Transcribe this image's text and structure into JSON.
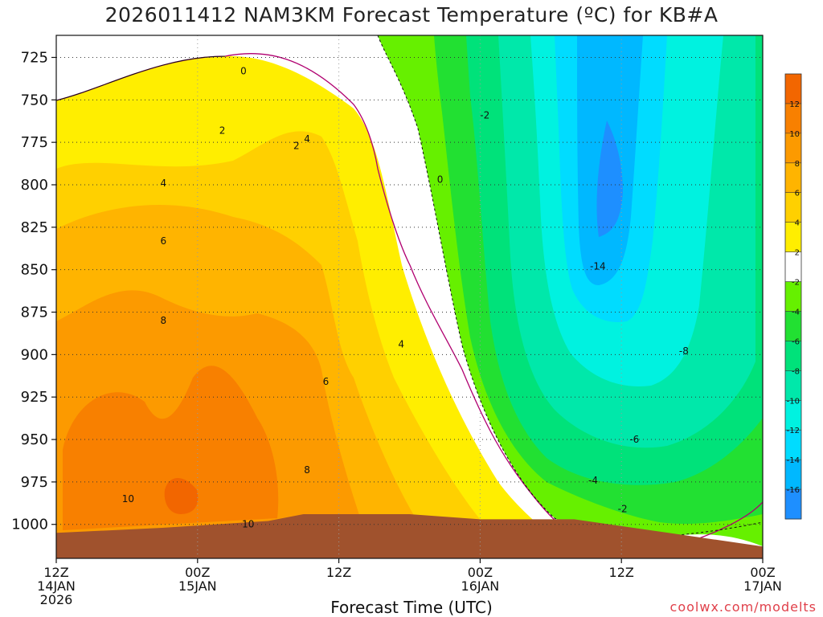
{
  "chart_data": {
    "type": "heatmap",
    "title": "2026011412 NAM3KM Forecast Temperature (ºC) for KB#A",
    "xlabel": "Forecast Time (UTC)",
    "x_ticks": [
      {
        "hour": 0,
        "l1": "12Z",
        "l2": "14JAN",
        "l3": "2026"
      },
      {
        "hour": 12,
        "l1": "00Z",
        "l2": "15JAN",
        "l3": ""
      },
      {
        "hour": 24,
        "l1": "12Z",
        "l2": "",
        "l3": ""
      },
      {
        "hour": 36,
        "l1": "00Z",
        "l2": "16JAN",
        "l3": ""
      },
      {
        "hour": 48,
        "l1": "12Z",
        "l2": "",
        "l3": ""
      },
      {
        "hour": 60,
        "l1": "00Z",
        "l2": "17JAN",
        "l3": ""
      }
    ],
    "xlim": [
      0,
      60
    ],
    "y_ticks": [
      725,
      750,
      775,
      800,
      825,
      850,
      875,
      900,
      925,
      950,
      975,
      1000
    ],
    "ylim": [
      1020,
      712
    ],
    "y_unit": "hPa",
    "colorbar": {
      "levels": [
        -18,
        -16,
        -14,
        -12,
        -10,
        -8,
        -6,
        -4,
        -2,
        2,
        4,
        6,
        8,
        10,
        12,
        14
      ],
      "tick_labels": [
        "-16",
        "-14",
        "-12",
        "-10",
        "-8",
        "-6",
        "-4",
        "-2",
        "2",
        "4",
        "6",
        "8",
        "10",
        "12"
      ],
      "colors": [
        "#1e8fff",
        "#00b8ff",
        "#00dcff",
        "#00f2e0",
        "#00e8aa",
        "#00e27a",
        "#22e032",
        "#66f000",
        "#ffffff",
        "#ffee00",
        "#ffd000",
        "#ffb400",
        "#fc9a00",
        "#f88000",
        "#f26600"
      ]
    },
    "contour_labels": [
      {
        "text": "0",
        "hour": 15.9,
        "p": 733
      },
      {
        "text": "0",
        "hour": 32.6,
        "p": 797
      },
      {
        "text": "-2",
        "hour": 36.4,
        "p": 759
      },
      {
        "text": "2",
        "hour": 14.1,
        "p": 768
      },
      {
        "text": "2",
        "hour": 20.4,
        "p": 777
      },
      {
        "text": "4",
        "hour": 21.3,
        "p": 773
      },
      {
        "text": "4",
        "hour": 9.1,
        "p": 799
      },
      {
        "text": "6",
        "hour": 9.1,
        "p": 833
      },
      {
        "text": "8",
        "hour": 9.1,
        "p": 880
      },
      {
        "text": "6",
        "hour": 22.9,
        "p": 916
      },
      {
        "text": "4",
        "hour": 29.3,
        "p": 894
      },
      {
        "text": "8",
        "hour": 21.3,
        "p": 968
      },
      {
        "text": "10",
        "hour": 6.1,
        "p": 985
      },
      {
        "text": "10",
        "hour": 16.3,
        "p": 1000
      },
      {
        "text": "-14",
        "hour": 46.0,
        "p": 848
      },
      {
        "text": "-8",
        "hour": 53.3,
        "p": 898
      },
      {
        "text": "-6",
        "hour": 49.1,
        "p": 950
      },
      {
        "text": "-4",
        "hour": 45.6,
        "p": 974
      },
      {
        "text": "-2",
        "hour": 48.1,
        "p": 991
      }
    ],
    "surface_pressure": [
      [
        0,
        1005
      ],
      [
        9,
        1002
      ],
      [
        18,
        998
      ],
      [
        21,
        994
      ],
      [
        30,
        994
      ],
      [
        36,
        997
      ],
      [
        44,
        997
      ],
      [
        52,
        1005
      ],
      [
        60,
        1013
      ]
    ],
    "grid": true
  },
  "credit": "coolwx.com/modelts"
}
